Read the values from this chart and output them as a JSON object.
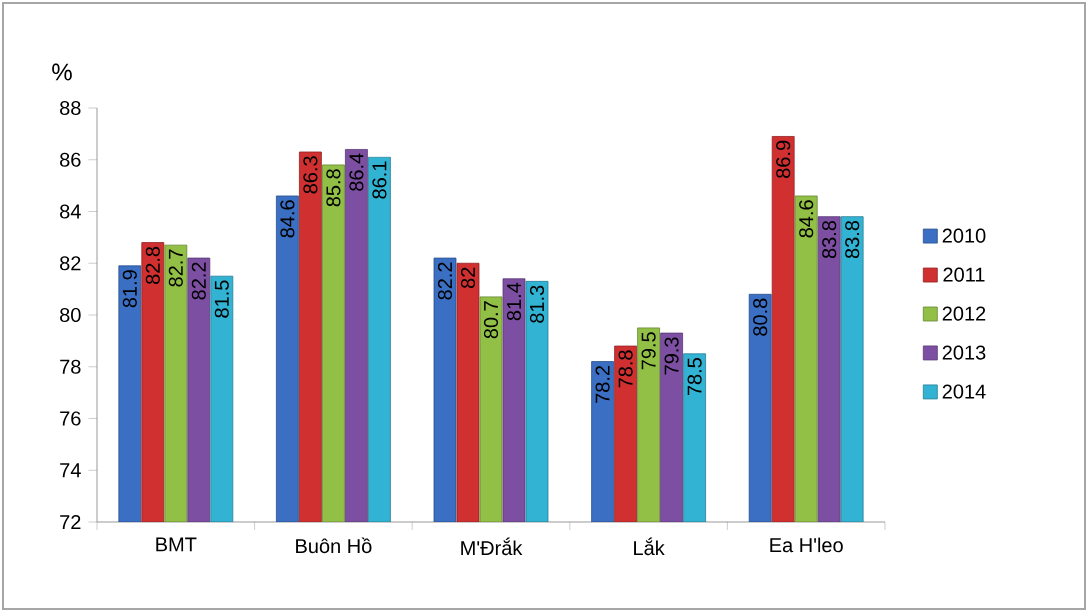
{
  "chart_data": {
    "type": "bar",
    "ylabel": "%",
    "categories": [
      "BMT",
      "Buôn Hồ",
      "M'Đrắk",
      "Lắk",
      "Ea H'leo"
    ],
    "series": [
      {
        "name": "2010",
        "color": "#3a6fc4",
        "values": [
          81.9,
          84.6,
          82.2,
          78.2,
          80.8
        ]
      },
      {
        "name": "2011",
        "color": "#d03030",
        "values": [
          82.8,
          86.3,
          82,
          78.8,
          86.9
        ]
      },
      {
        "name": "2012",
        "color": "#92c046",
        "values": [
          82.7,
          85.8,
          80.7,
          79.5,
          84.6
        ]
      },
      {
        "name": "2013",
        "color": "#7d4fa3",
        "values": [
          82.2,
          86.4,
          81.4,
          79.3,
          83.8
        ]
      },
      {
        "name": "2014",
        "color": "#33b3d3",
        "values": [
          81.5,
          86.1,
          81.3,
          78.5,
          83.8
        ]
      }
    ],
    "ylim": [
      72,
      88
    ],
    "yticks": [
      72,
      74,
      76,
      78,
      80,
      82,
      84,
      86,
      88
    ],
    "data_labels": true,
    "legend": "right",
    "grid": false
  }
}
